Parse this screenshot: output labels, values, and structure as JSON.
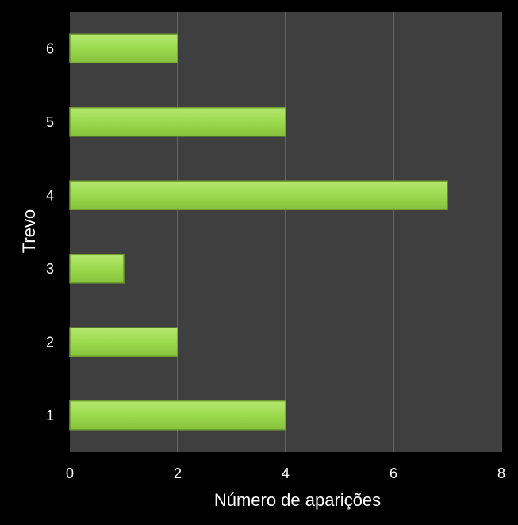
{
  "chart_data": {
    "type": "bar",
    "orientation": "horizontal",
    "categories": [
      "1",
      "2",
      "3",
      "4",
      "5",
      "6"
    ],
    "values": [
      4,
      2,
      1,
      7,
      4,
      2
    ],
    "xlabel": "Número de aparições",
    "ylabel": "Trevo",
    "xlim": [
      0,
      8
    ],
    "xticks": [
      0,
      2,
      4,
      6,
      8
    ],
    "grid": "vertical",
    "legend": "none",
    "colors": {
      "background": "#000000",
      "plot_area": "#3f3f3f",
      "bar_fill": "#9bd94e",
      "bar_stroke": "#6f9c2e",
      "grid": "#8a8a8a"
    }
  }
}
